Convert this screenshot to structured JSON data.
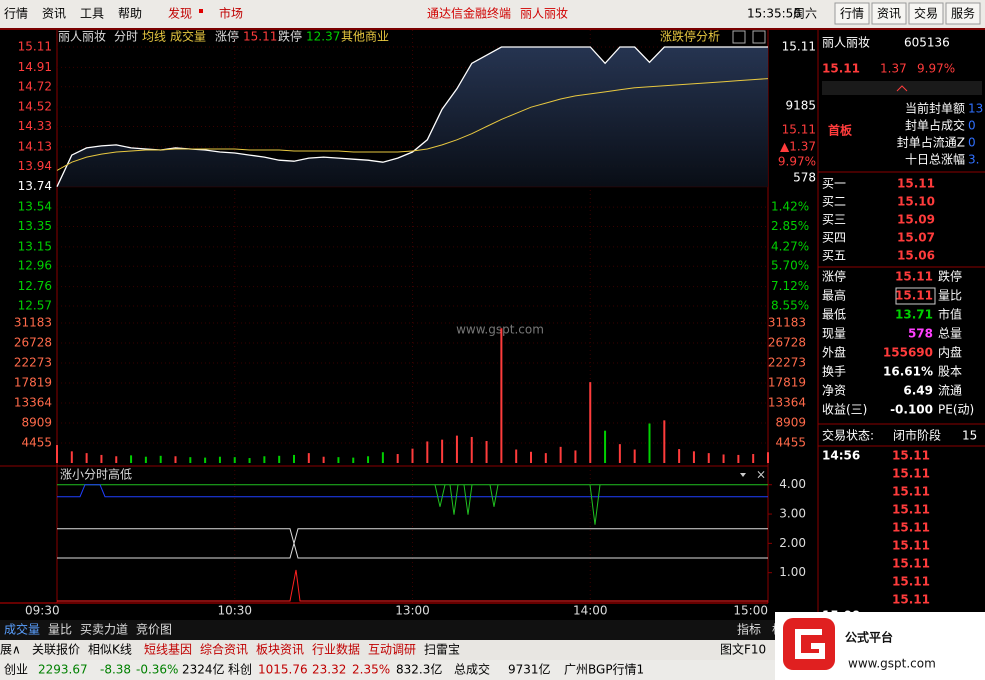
{
  "menu": {
    "items": [
      "行情",
      "资讯",
      "工具",
      "帮助"
    ],
    "discover": "发现",
    "market": "市场",
    "banner": [
      "通达信金融终端",
      "丽人丽妆"
    ],
    "time": "15:35:56",
    "weekday": "周六",
    "buttons": [
      "行情",
      "资讯",
      "交易",
      "服务"
    ]
  },
  "chart_header": {
    "name": "丽人丽妆",
    "limit_up_label": "涨停",
    "limit_up": "15.11",
    "limit_down_label": "跌停",
    "limit_down": "12.37",
    "sector": "其他商业",
    "analysis": "涨跌停分析"
  },
  "chart_data": {
    "type": "line",
    "categories": [
      "09:30",
      null,
      null,
      null,
      null,
      null,
      null,
      null,
      null,
      null,
      null,
      null,
      "10:30",
      null,
      null,
      null,
      null,
      null,
      null,
      null,
      null,
      null,
      null,
      null,
      "13:00",
      null,
      null,
      null,
      null,
      null,
      null,
      null,
      null,
      null,
      null,
      null,
      "14:00",
      null,
      null,
      null,
      null,
      null,
      null,
      null,
      null,
      null,
      null,
      null,
      "15:00"
    ],
    "series": [
      {
        "name": "分时",
        "color": "#ffffff",
        "values": [
          13.74,
          14.05,
          14.12,
          14.14,
          14.15,
          14.12,
          14.11,
          14.1,
          14.12,
          14.11,
          14.1,
          14.08,
          14.07,
          14.05,
          14.03,
          14.0,
          13.99,
          14.02,
          14.03,
          14.02,
          14.01,
          14.0,
          13.98,
          14.02,
          14.08,
          14.2,
          14.5,
          14.7,
          14.95,
          15.03,
          15.11,
          15.11,
          15.11,
          15.11,
          15.11,
          15.11,
          15.11,
          14.95,
          15.11,
          15.11,
          14.96,
          15.11,
          15.11,
          15.11,
          15.11,
          15.11,
          15.11,
          15.11,
          15.11
        ]
      },
      {
        "name": "均线",
        "color": "#e8c840",
        "values": [
          13.9,
          13.98,
          14.03,
          14.06,
          14.08,
          14.09,
          14.1,
          14.1,
          14.11,
          14.11,
          14.11,
          14.11,
          14.11,
          14.1,
          14.1,
          14.1,
          14.09,
          14.09,
          14.09,
          14.09,
          14.08,
          14.08,
          14.08,
          14.08,
          14.09,
          14.11,
          14.15,
          14.2,
          14.26,
          14.33,
          14.4,
          14.46,
          14.52,
          14.56,
          14.6,
          14.63,
          14.65,
          14.67,
          14.69,
          14.71,
          14.72,
          14.73,
          14.74,
          14.75,
          14.76,
          14.77,
          14.78,
          14.79,
          14.8
        ]
      }
    ],
    "ylim": [
      12.57,
      15.11
    ],
    "yticks": [
      15.11,
      14.91,
      14.72,
      14.52,
      14.33,
      14.13,
      13.94,
      13.74,
      13.54,
      13.35,
      13.15,
      12.96,
      12.76,
      12.57
    ],
    "pct_labels": [
      "1.42%",
      "2.85%",
      "4.27%",
      "5.70%",
      "7.12%",
      "8.55%"
    ],
    "volume": {
      "name": "成交量",
      "values": [
        4000,
        2600,
        2200,
        1800,
        1500,
        1700,
        1400,
        1600,
        1500,
        1300,
        1200,
        1400,
        1300,
        1100,
        1500,
        1600,
        1800,
        2200,
        1400,
        1300,
        1200,
        1500,
        2400,
        2000,
        3200,
        4800,
        5200,
        6100,
        5800,
        4900,
        30000,
        3000,
        2500,
        2200,
        3600,
        2800,
        18000,
        7200,
        4200,
        3000,
        8800,
        9500,
        3100,
        2600,
        2200,
        1900,
        1800,
        2000,
        2400
      ],
      "ylim": [
        0,
        31183
      ],
      "yticks": [
        31183,
        26728,
        22273,
        17819,
        13364,
        8909,
        4455
      ]
    },
    "indicator": {
      "title": "涨小分时高低",
      "ylim": [
        0,
        4.4
      ],
      "yticks": [
        {
          "value": 4,
          "label": "4.00"
        },
        {
          "value": 3,
          "label": "3.00"
        },
        {
          "value": 2,
          "label": "2.00"
        },
        {
          "value": 1,
          "label": "1.00"
        }
      ]
    }
  },
  "info_box": [
    "15.11",
    "9185",
    "15.11",
    "▲1.37",
    "9.97%",
    "578"
  ],
  "watermark": "www.gspt.com",
  "quote": {
    "name": "丽人丽妆",
    "code": "605136",
    "price": "15.11",
    "change": "1.37",
    "pct": "9.97%",
    "tag": "首板",
    "seal": [
      {
        "label": "当前封单额",
        "value": "13"
      },
      {
        "label": "封单占成交",
        "value": "0"
      },
      {
        "label": "封单占流通Z",
        "value": "0"
      },
      {
        "label": "十日总涨幅",
        "value": "3."
      }
    ],
    "bids": [
      {
        "label": "买一",
        "price": "15.11"
      },
      {
        "label": "买二",
        "price": "15.10"
      },
      {
        "label": "买三",
        "price": "15.09"
      },
      {
        "label": "买四",
        "price": "15.07"
      },
      {
        "label": "买五",
        "price": "15.06"
      }
    ],
    "stats": [
      [
        "涨停",
        "15.11",
        "跌停"
      ],
      [
        "最高",
        "15.11",
        "量比"
      ],
      [
        "最低",
        "13.71",
        "市值"
      ],
      [
        "现量",
        "578",
        "总量"
      ],
      [
        "外盘",
        "155690",
        "内盘"
      ],
      [
        "换手",
        "16.61%",
        "股本"
      ],
      [
        "净资",
        "6.49",
        "流通"
      ],
      [
        "收益(三)",
        "-0.100",
        "PE(动)"
      ]
    ],
    "status": [
      "交易状态:",
      "闭市阶段",
      "15"
    ],
    "trade_times": [
      "14:56",
      "15:00"
    ],
    "trades": [
      "15.11",
      "15.11",
      "15.11",
      "15.11",
      "15.11",
      "15.11",
      "15.11",
      "15.11",
      "15.11",
      "15.11"
    ]
  },
  "tabs": [
    "成交量",
    "量比",
    "买卖力道",
    "竞价图"
  ],
  "tab_right": [
    "指标",
    "标"
  ],
  "links": [
    "展∧",
    "关联报价",
    "相似K线",
    "短线基因",
    "综合资讯",
    "板块资讯",
    "行业数据",
    "互动调研",
    "扫雷宝"
  ],
  "link_right": "图文F10",
  "footer": [
    "创业",
    "2293.67",
    "-8.38",
    "-0.36%",
    "2324亿",
    "科创",
    "1015.76",
    "23.32",
    "2.35%",
    "832.3亿",
    "总成交",
    "9731亿",
    "广州BGP行情1"
  ],
  "logo": {
    "title": "公式平台",
    "url": "www.gspt.com"
  }
}
